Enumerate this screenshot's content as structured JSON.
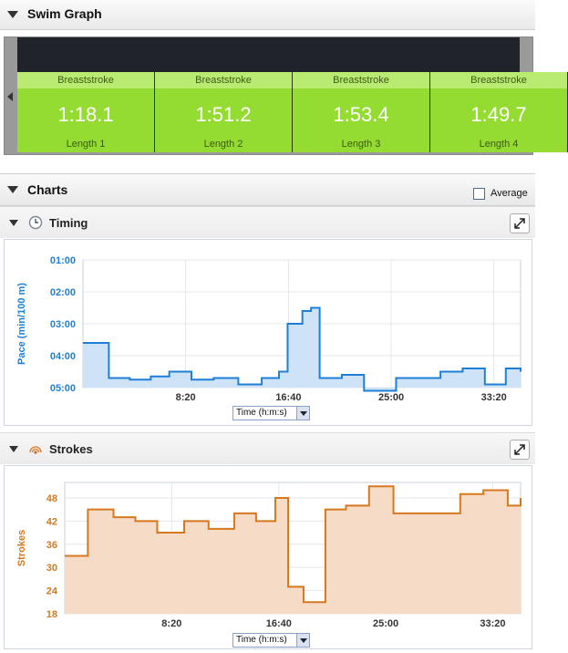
{
  "swim_graph": {
    "title": "Swim Graph",
    "laps": [
      {
        "stroke": "Breaststroke",
        "time": "1:18.1",
        "label": "Length 1"
      },
      {
        "stroke": "Breaststroke",
        "time": "1:51.2",
        "label": "Length 2"
      },
      {
        "stroke": "Breaststroke",
        "time": "1:53.4",
        "label": "Length 3"
      },
      {
        "stroke": "Breaststroke",
        "time": "1:49.7",
        "label": "Length 4"
      }
    ]
  },
  "charts": {
    "title": "Charts",
    "average_label": "Average",
    "average_checked": false
  },
  "timing": {
    "title": "Timing",
    "x_select": "Time (h:m:s)"
  },
  "strokes": {
    "title": "Strokes",
    "x_select": "Time (h:m:s)"
  },
  "colors": {
    "timing_line": "#1f7fd6",
    "timing_fill": "#cfe3f7",
    "strokes_line": "#d5781e",
    "strokes_fill": "#f6dcc6",
    "lap_green": "#94dc32"
  },
  "chart_data": [
    {
      "type": "line",
      "title": "Timing",
      "ylabel": "Pace (min/100 m)",
      "xlabel": "Time (h:m:s)",
      "y_ticks": [
        "01:00",
        "02:00",
        "03:00",
        "04:00",
        "05:00"
      ],
      "x_ticks": [
        "8:20",
        "16:40",
        "25:00",
        "33:20"
      ],
      "y_min": 1,
      "y_max": 5,
      "y_inverted": true,
      "x": [
        0,
        2.1,
        3.8,
        5.5,
        7.0,
        8.8,
        10.6,
        12.6,
        14.5,
        15.9,
        16.6,
        17.8,
        18.5,
        19.2,
        21.0,
        22.8,
        25.4,
        27.2,
        29.0,
        30.8,
        32.6,
        34.3,
        35.5
      ],
      "values": [
        3.6,
        4.7,
        4.75,
        4.65,
        4.5,
        4.75,
        4.7,
        4.9,
        4.7,
        4.5,
        3.0,
        2.6,
        2.5,
        4.7,
        4.6,
        5.1,
        4.7,
        4.7,
        4.5,
        4.4,
        4.9,
        4.4,
        4.5
      ],
      "grid": true
    },
    {
      "type": "line",
      "title": "Strokes",
      "ylabel": "Strokes",
      "xlabel": "Time (h:m:s)",
      "y_ticks": [
        "18",
        "24",
        "30",
        "36",
        "42",
        "48"
      ],
      "x_ticks": [
        "8:20",
        "16:40",
        "25:00",
        "33:20"
      ],
      "y_min": 18,
      "y_max": 52,
      "x": [
        0,
        1.8,
        3.8,
        5.5,
        7.2,
        9.3,
        11.2,
        13.2,
        14.9,
        16.4,
        17.4,
        18.6,
        20.3,
        21.9,
        23.7,
        25.6,
        27.2,
        30.8,
        32.6,
        34.5,
        35.5
      ],
      "values": [
        33,
        45,
        43,
        42,
        39,
        42,
        40,
        44,
        42,
        48,
        25,
        21,
        45,
        46,
        51,
        44,
        44,
        49,
        50,
        46,
        48
      ],
      "grid": true
    }
  ]
}
